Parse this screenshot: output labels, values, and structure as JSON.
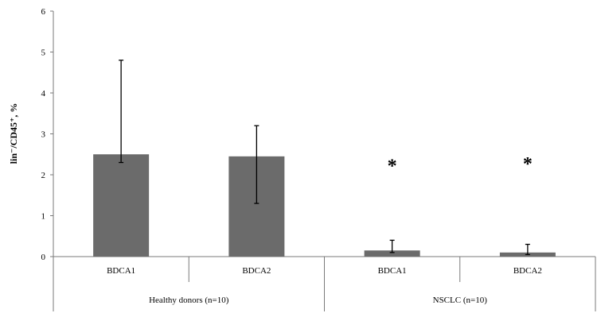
{
  "chart_data": {
    "type": "bar",
    "ylabel": "lin⁻/CD45⁺, %",
    "ylim": [
      0,
      6
    ],
    "yticks": [
      0,
      1,
      2,
      3,
      4,
      5,
      6
    ],
    "grid": false,
    "legend": "none",
    "bar_color": "#6b6b6b",
    "categories": [
      "BDCA1",
      "BDCA2",
      "BDCA1",
      "BDCA2"
    ],
    "values": [
      2.5,
      2.45,
      0.15,
      0.1
    ],
    "error_upper": [
      4.8,
      3.2,
      0.4,
      0.3
    ],
    "error_lower": [
      2.3,
      1.3,
      0.1,
      0.05
    ],
    "groups": [
      {
        "label": "Healthy donors (n=10)",
        "categories": [
          0,
          1
        ]
      },
      {
        "label": "NSCLC (n=10)",
        "categories": [
          2,
          3
        ]
      }
    ],
    "annotations": [
      {
        "category": 2,
        "text": "*",
        "y": 2.3
      },
      {
        "category": 3,
        "text": "*",
        "y": 2.35
      }
    ]
  }
}
